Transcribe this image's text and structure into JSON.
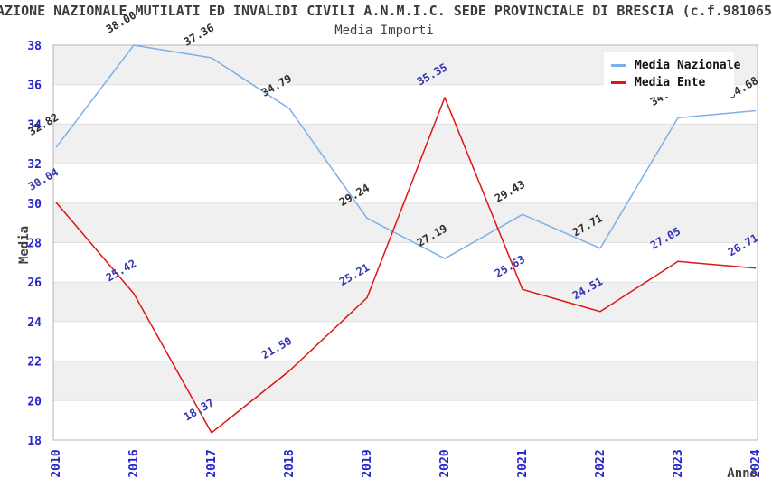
{
  "chart_data": {
    "type": "line",
    "title": "AZIONE NAZIONALE MUTILATI ED INVALIDI CIVILI A.N.M.I.C. SEDE PROVINCIALE DI BRESCIA (c.f.981065",
    "subtitle": "Media Importi",
    "xlabel": "Anno",
    "ylabel": "Media",
    "categories": [
      "2010",
      "2016",
      "2017",
      "2018",
      "2019",
      "2020",
      "2021",
      "2022",
      "2023",
      "2024"
    ],
    "series": [
      {
        "name": "Media Nazionale",
        "color": "#7db0e8",
        "label_color": "#2e2e2e",
        "values": [
          32.82,
          38.0,
          37.36,
          34.79,
          29.24,
          27.19,
          29.43,
          27.71,
          34.32,
          34.68
        ]
      },
      {
        "name": "Media Ente",
        "color": "#e01414",
        "label_color": "#3333b3",
        "values": [
          30.04,
          25.42,
          18.37,
          21.5,
          25.21,
          35.35,
          25.63,
          24.51,
          27.05,
          26.71
        ]
      }
    ],
    "ylim": [
      18,
      38
    ],
    "ytick_step": 2,
    "yticks": [
      18,
      20,
      22,
      24,
      26,
      28,
      30,
      32,
      34,
      36,
      38
    ],
    "legend_position": "top-right",
    "grid": "horizontal-bands",
    "band_colors": [
      "#f0f0f0",
      "#ffffff"
    ],
    "tick_label_color": "#2424cc",
    "border_color": "#b4b4b4",
    "gridline_color": "#e0e0e0",
    "value_label_format": "0.00"
  }
}
